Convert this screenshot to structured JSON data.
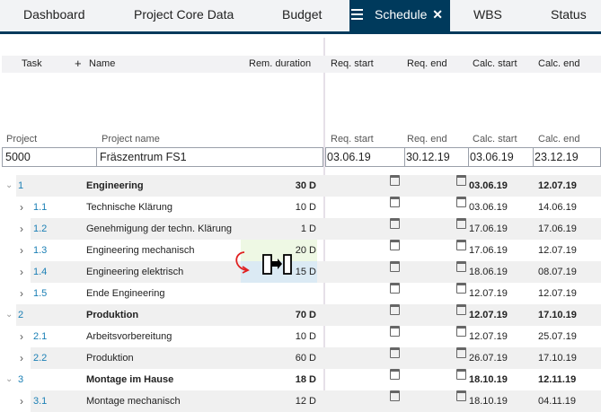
{
  "tabs": [
    {
      "label": "Dashboard"
    },
    {
      "label": "Project Core Data"
    },
    {
      "label": "Budget"
    },
    {
      "label": "Schedule",
      "active": true
    },
    {
      "label": "WBS"
    },
    {
      "label": "Status"
    }
  ],
  "columns": {
    "task": "Task",
    "add": "+",
    "name": "Name",
    "rem_duration": "Rem. duration",
    "req_start": "Req. start",
    "req_end": "Req. end",
    "calc_start": "Calc. start",
    "calc_end": "Calc. end"
  },
  "project_header": {
    "project": "Project",
    "project_name": "Project name",
    "req_start": "Req. start",
    "req_end": "Req. end",
    "calc_start": "Calc. start",
    "calc_end": "Calc. end"
  },
  "project": {
    "id": "5000",
    "name": "Fräszentrum FS1",
    "req_start": "03.06.19",
    "req_end": "30.12.19",
    "calc_start": "03.06.19",
    "calc_end": "23.12.19"
  },
  "rows": [
    {
      "level": 1,
      "num": "1",
      "name": "Engineering",
      "duration": "30 D",
      "calc_start": "03.06.19",
      "calc_end": "12.07.19",
      "expanded": true
    },
    {
      "level": 2,
      "num": "1.1",
      "name": "Technische Klärung",
      "duration": "10 D",
      "calc_start": "03.06.19",
      "calc_end": "14.06.19"
    },
    {
      "level": 2,
      "num": "1.2",
      "name": "Genehmigung der techn. Klärung",
      "duration": "1 D",
      "calc_start": "17.06.19",
      "calc_end": "17.06.19"
    },
    {
      "level": 2,
      "num": "1.3",
      "name": "Engineering mechanisch",
      "duration": "20 D",
      "calc_start": "17.06.19",
      "calc_end": "12.07.19",
      "highlight": "#eef8e4"
    },
    {
      "level": 2,
      "num": "1.4",
      "name": "Engineering elektrisch",
      "duration": "15 D",
      "calc_start": "18.06.19",
      "calc_end": "08.07.19",
      "highlight": "#dbeaf4"
    },
    {
      "level": 2,
      "num": "1.5",
      "name": "Ende Engineering",
      "duration": "",
      "calc_start": "12.07.19",
      "calc_end": "12.07.19"
    },
    {
      "level": 1,
      "num": "2",
      "name": "Produktion",
      "duration": "70 D",
      "calc_start": "12.07.19",
      "calc_end": "17.10.19",
      "expanded": true
    },
    {
      "level": 2,
      "num": "2.1",
      "name": "Arbeitsvorbereitung",
      "duration": "10 D",
      "calc_start": "12.07.19",
      "calc_end": "25.07.19"
    },
    {
      "level": 2,
      "num": "2.2",
      "name": "Produktion",
      "duration": "60 D",
      "calc_start": "26.07.19",
      "calc_end": "17.10.19"
    },
    {
      "level": 1,
      "num": "3",
      "name": "Montage im Hause",
      "duration": "18 D",
      "calc_start": "18.10.19",
      "calc_end": "12.11.19",
      "expanded": true
    },
    {
      "level": 2,
      "num": "3.1",
      "name": "Montage mechanisch",
      "duration": "12 D",
      "calc_start": "18.10.19",
      "calc_end": "04.11.19"
    }
  ],
  "drag_cursor": "link-tasks-cursor-icon",
  "colors": {
    "accent": "#003a5c",
    "link": "#1a7fb5",
    "row_alt": "#f0f0f0",
    "arrow": "#e02020"
  }
}
